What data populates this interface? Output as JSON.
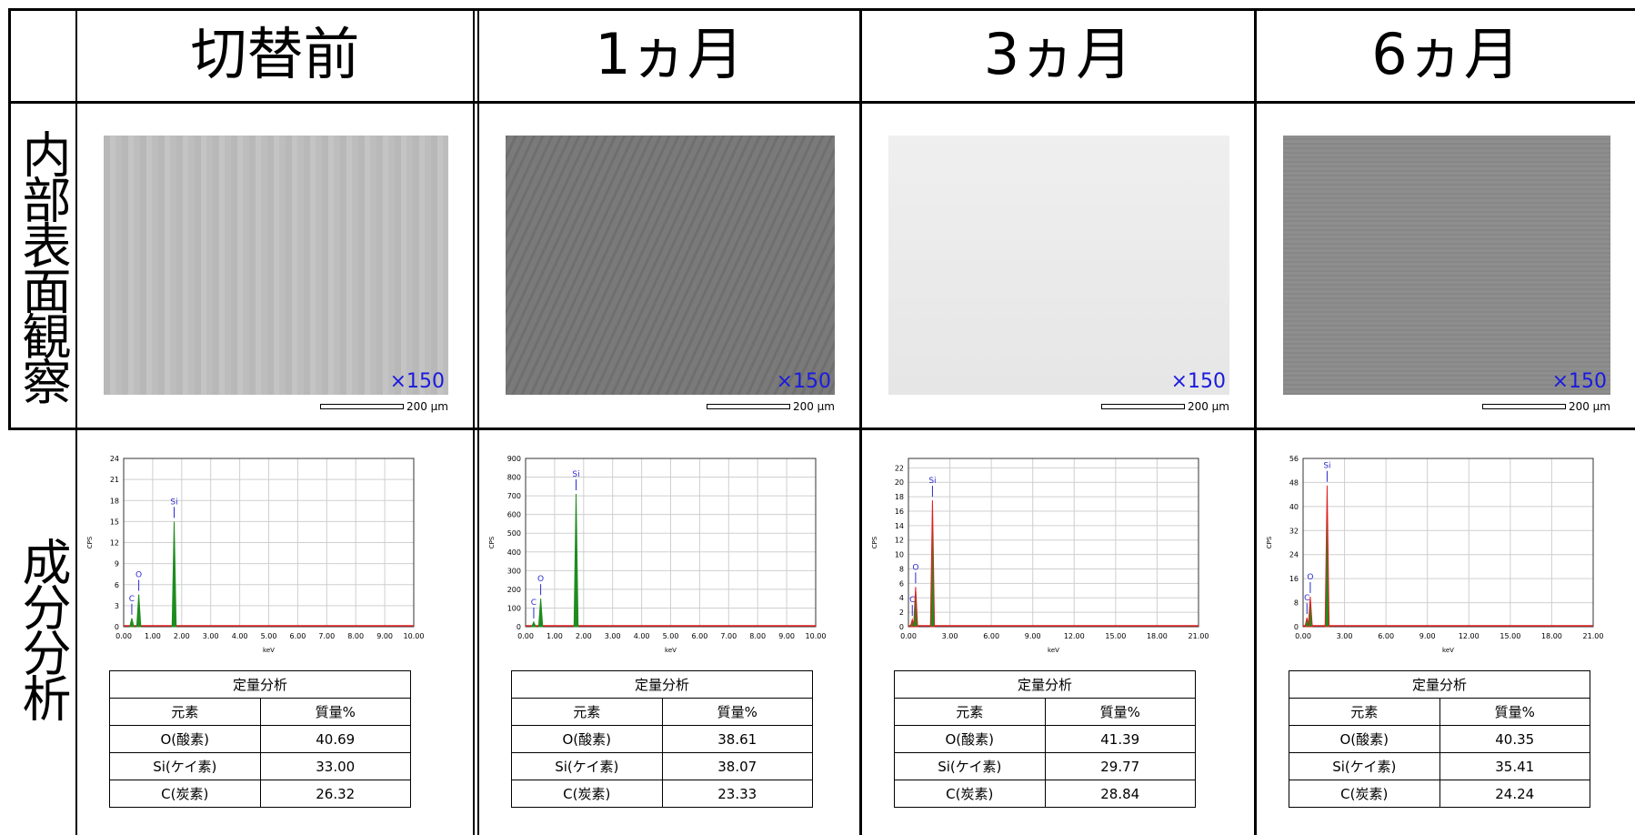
{
  "row_labels": [
    "内部表面観察",
    "成分分析"
  ],
  "columns": [
    {
      "title": "切替前",
      "image": {
        "magnification": "×150",
        "scale": "200 μm"
      },
      "spectrum": {
        "ylabel": "CPS",
        "xlabel": "keV",
        "ylim": [
          0,
          24
        ],
        "yticks": [
          0,
          3,
          6,
          9,
          12,
          15,
          18,
          21,
          24
        ],
        "xlim": [
          0,
          10
        ],
        "xticks": [
          {
            "value": 0,
            "label": "0.00"
          },
          {
            "value": 1,
            "label": "1.00"
          },
          {
            "value": 2,
            "label": "2.00"
          },
          {
            "value": 3,
            "label": "3.00"
          },
          {
            "value": 4,
            "label": "4.00"
          },
          {
            "value": 5,
            "label": "5.00"
          },
          {
            "value": 6,
            "label": "6.00"
          },
          {
            "value": 7,
            "label": "7.00"
          },
          {
            "value": 8,
            "label": "8.00"
          },
          {
            "value": 9,
            "label": "9.00"
          },
          {
            "value": 10,
            "label": "10.00"
          }
        ],
        "peak_fill": "#1e8c1e",
        "peak_stroke": "#1e8c1e",
        "background_color": "#e02020",
        "peaks": [
          {
            "element": "C",
            "x": 0.28,
            "y": 1.2
          },
          {
            "element": "O",
            "x": 0.52,
            "y": 4.6
          },
          {
            "element": "Si",
            "x": 1.74,
            "y": 15
          }
        ]
      },
      "table": {
        "title": "定量分析",
        "header": [
          "元素",
          "質量%"
        ],
        "rows": [
          [
            "O(酸素)",
            "40.69"
          ],
          [
            "Si(ケイ素)",
            "33.00"
          ],
          [
            "C(炭素)",
            "26.32"
          ]
        ]
      }
    },
    {
      "title": "1ヵ月",
      "image": {
        "magnification": "×150",
        "scale": "200 μm"
      },
      "spectrum": {
        "ylabel": "CPS",
        "xlabel": "keV",
        "ylim": [
          0,
          900
        ],
        "yticks": [
          0,
          100,
          200,
          300,
          400,
          500,
          600,
          700,
          800,
          900
        ],
        "xlim": [
          0,
          10
        ],
        "xticks": [
          {
            "value": 0,
            "label": "0.00"
          },
          {
            "value": 1,
            "label": "1.00"
          },
          {
            "value": 2,
            "label": "2.00"
          },
          {
            "value": 3,
            "label": "3.00"
          },
          {
            "value": 4,
            "label": "4.00"
          },
          {
            "value": 5,
            "label": "5.00"
          },
          {
            "value": 6,
            "label": "6.00"
          },
          {
            "value": 7,
            "label": "7.00"
          },
          {
            "value": 8,
            "label": "8.00"
          },
          {
            "value": 9,
            "label": "9.00"
          },
          {
            "value": 10,
            "label": "10.00"
          }
        ],
        "peak_fill": "#1e8c1e",
        "peak_stroke": "#1e8c1e",
        "background_color": "#e02020",
        "peaks": [
          {
            "element": "C",
            "x": 0.28,
            "y": 25
          },
          {
            "element": "O",
            "x": 0.52,
            "y": 150
          },
          {
            "element": "Si",
            "x": 1.74,
            "y": 710
          }
        ]
      },
      "table": {
        "title": "定量分析",
        "header": [
          "元素",
          "質量%"
        ],
        "rows": [
          [
            "O(酸素)",
            "38.61"
          ],
          [
            "Si(ケイ素)",
            "38.07"
          ],
          [
            "C(炭素)",
            "23.33"
          ]
        ]
      }
    },
    {
      "title": "3ヵ月",
      "image": {
        "magnification": "×150",
        "scale": "200 μm"
      },
      "spectrum": {
        "ylabel": "CPS",
        "xlabel": "keV",
        "ylim": [
          0,
          23.3
        ],
        "yticks": [
          0,
          2,
          4,
          6,
          8,
          10,
          12,
          14,
          16,
          18,
          20,
          22
        ],
        "xlim": [
          0,
          21
        ],
        "xticks": [
          {
            "value": 0,
            "label": "0.00"
          },
          {
            "value": 3,
            "label": "3.00"
          },
          {
            "value": 6,
            "label": "6.00"
          },
          {
            "value": 9,
            "label": "9.00"
          },
          {
            "value": 12,
            "label": "12.00"
          },
          {
            "value": 15,
            "label": "15.00"
          },
          {
            "value": 18,
            "label": "18.00"
          },
          {
            "value": 21,
            "label": "21.00"
          }
        ],
        "peak_fill": "#1e8c1e",
        "peak_stroke": "#e02020",
        "background_color": "#e02020",
        "peaks": [
          {
            "element": "C",
            "x": 0.28,
            "y": 1
          },
          {
            "element": "O",
            "x": 0.52,
            "y": 5.5
          },
          {
            "element": "Si",
            "x": 1.74,
            "y": 17.5
          }
        ]
      },
      "table": {
        "title": "定量分析",
        "header": [
          "元素",
          "質量%"
        ],
        "rows": [
          [
            "O(酸素)",
            "41.39"
          ],
          [
            "Si(ケイ素)",
            "29.77"
          ],
          [
            "C(炭素)",
            "28.84"
          ]
        ]
      }
    },
    {
      "title": "6ヵ月",
      "image": {
        "magnification": "×150",
        "scale": "200 μm"
      },
      "spectrum": {
        "ylabel": "CPS",
        "xlabel": "keV",
        "ylim": [
          0,
          56
        ],
        "yticks": [
          0,
          8,
          16,
          24,
          32,
          40,
          48,
          56
        ],
        "xlim": [
          0,
          21
        ],
        "xticks": [
          {
            "value": 0,
            "label": "0.00"
          },
          {
            "value": 3,
            "label": "3.00"
          },
          {
            "value": 6,
            "label": "6.00"
          },
          {
            "value": 9,
            "label": "9.00"
          },
          {
            "value": 12,
            "label": "12.00"
          },
          {
            "value": 15,
            "label": "15.00"
          },
          {
            "value": 18,
            "label": "18.00"
          },
          {
            "value": 21,
            "label": "21.00"
          }
        ],
        "peak_fill": "#1e8c1e",
        "peak_stroke": "#e02020",
        "background_color": "#e02020",
        "peaks": [
          {
            "element": "C",
            "x": 0.28,
            "y": 3
          },
          {
            "element": "O",
            "x": 0.52,
            "y": 10
          },
          {
            "element": "Si",
            "x": 1.74,
            "y": 47
          }
        ]
      },
      "table": {
        "title": "定量分析",
        "header": [
          "元素",
          "質量%"
        ],
        "rows": [
          [
            "O(酸素)",
            "40.35"
          ],
          [
            "Si(ケイ素)",
            "35.41"
          ],
          [
            "C(炭素)",
            "24.24"
          ]
        ]
      }
    }
  ]
}
